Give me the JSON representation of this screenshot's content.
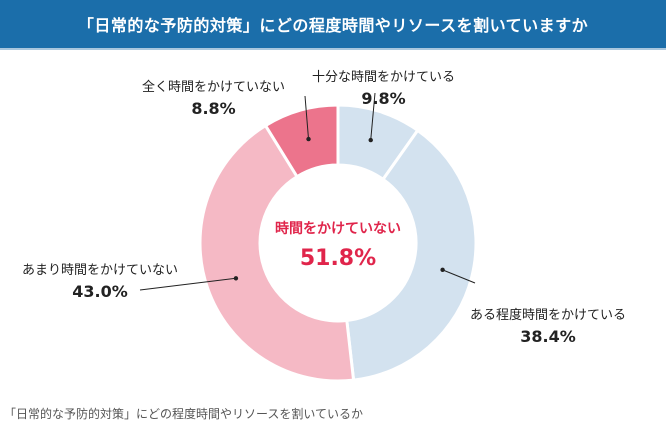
{
  "title": "「日常的な予防的対策」にどの程度時間やリソースを割いていますか",
  "caption": "「日常的な予防的対策」にどの程度時間やリソースを割いているか",
  "chart_data": {
    "type": "pie",
    "variant": "donut",
    "title": "「日常的な予防的対策」にどの程度時間やリソースを割いていますか",
    "slices": [
      {
        "label": "十分な時間をかけている",
        "value": 9.8,
        "display": "9.8%",
        "color": "#d3e2ef"
      },
      {
        "label": "ある程度時間をかけている",
        "value": 38.4,
        "display": "38.4%",
        "color": "#d3e2ef"
      },
      {
        "label": "あまり時間をかけていない",
        "value": 43.0,
        "display": "43.0%",
        "color": "#f5b9c5"
      },
      {
        "label": "全く時間をかけていない",
        "value": 8.8,
        "display": "8.8%",
        "color": "#ec748c"
      }
    ],
    "center": {
      "label": "時間をかけていない",
      "value": "51.8%",
      "color": "#e0254b"
    }
  }
}
